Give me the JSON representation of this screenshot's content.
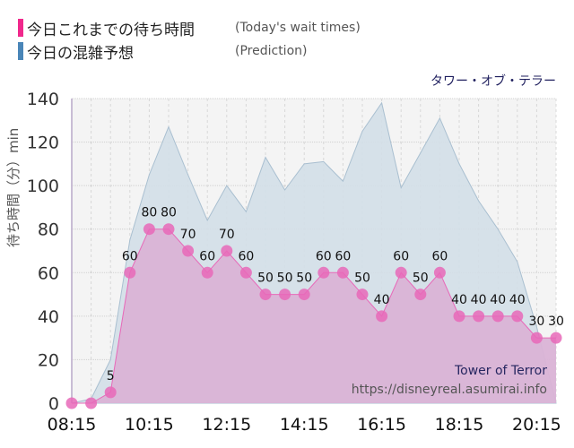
{
  "legend": {
    "items": [
      {
        "label": "今日これまでの待ち時間",
        "sub": "(Today's wait times)",
        "color": "#f0288c"
      },
      {
        "label": "今日の混雑予想",
        "sub": "(Prediction)",
        "color": "#4a86b8"
      }
    ]
  },
  "ride_title": "タワー・オブ・テラー",
  "y_axis_label": "待ち時間（分）min",
  "watermark": {
    "name": "Tower of Terror",
    "url": "https://disneyreal.asumirai.info"
  },
  "chart_data": {
    "type": "area",
    "title": "タワー・オブ・テラー",
    "xlabel": "",
    "ylabel": "待ち時間（分）min",
    "ylim": [
      0,
      140
    ],
    "yticks": [
      0,
      20,
      40,
      60,
      80,
      100,
      120,
      140
    ],
    "xtick_labels": [
      "08:15",
      "10:15",
      "12:15",
      "14:15",
      "16:15",
      "18:15",
      "20:15"
    ],
    "grid": true,
    "legend_position": "top-left",
    "x": [
      "08:15",
      "08:45",
      "09:15",
      "09:45",
      "10:15",
      "10:45",
      "11:15",
      "11:45",
      "12:15",
      "12:45",
      "13:15",
      "13:45",
      "14:15",
      "14:45",
      "15:15",
      "15:45",
      "16:15",
      "16:45",
      "17:15",
      "17:45",
      "18:15",
      "18:45",
      "19:15",
      "19:45",
      "20:15",
      "20:45"
    ],
    "series": [
      {
        "name": "今日これまでの待ち時間 (Today's wait times)",
        "color": "#e868b8",
        "values": [
          0,
          0,
          5,
          60,
          80,
          80,
          70,
          60,
          70,
          60,
          50,
          50,
          50,
          60,
          60,
          50,
          40,
          60,
          50,
          60,
          40,
          40,
          40,
          40,
          30,
          30
        ]
      },
      {
        "name": "今日の混雑予想 (Prediction)",
        "color": "#a9c2d6",
        "values": [
          0,
          2,
          20,
          75,
          105,
          127,
          105,
          84,
          100,
          88,
          113,
          98,
          110,
          111,
          102,
          125,
          138,
          99,
          115,
          131,
          110,
          93,
          80,
          65,
          35,
          0
        ]
      }
    ]
  }
}
